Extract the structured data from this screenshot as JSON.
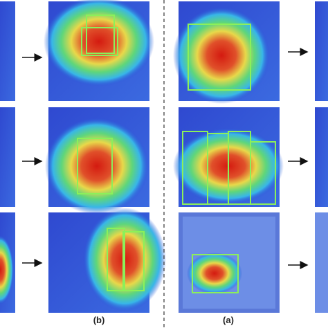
{
  "labels": {
    "left": "(b)",
    "right": "(a)"
  }
}
